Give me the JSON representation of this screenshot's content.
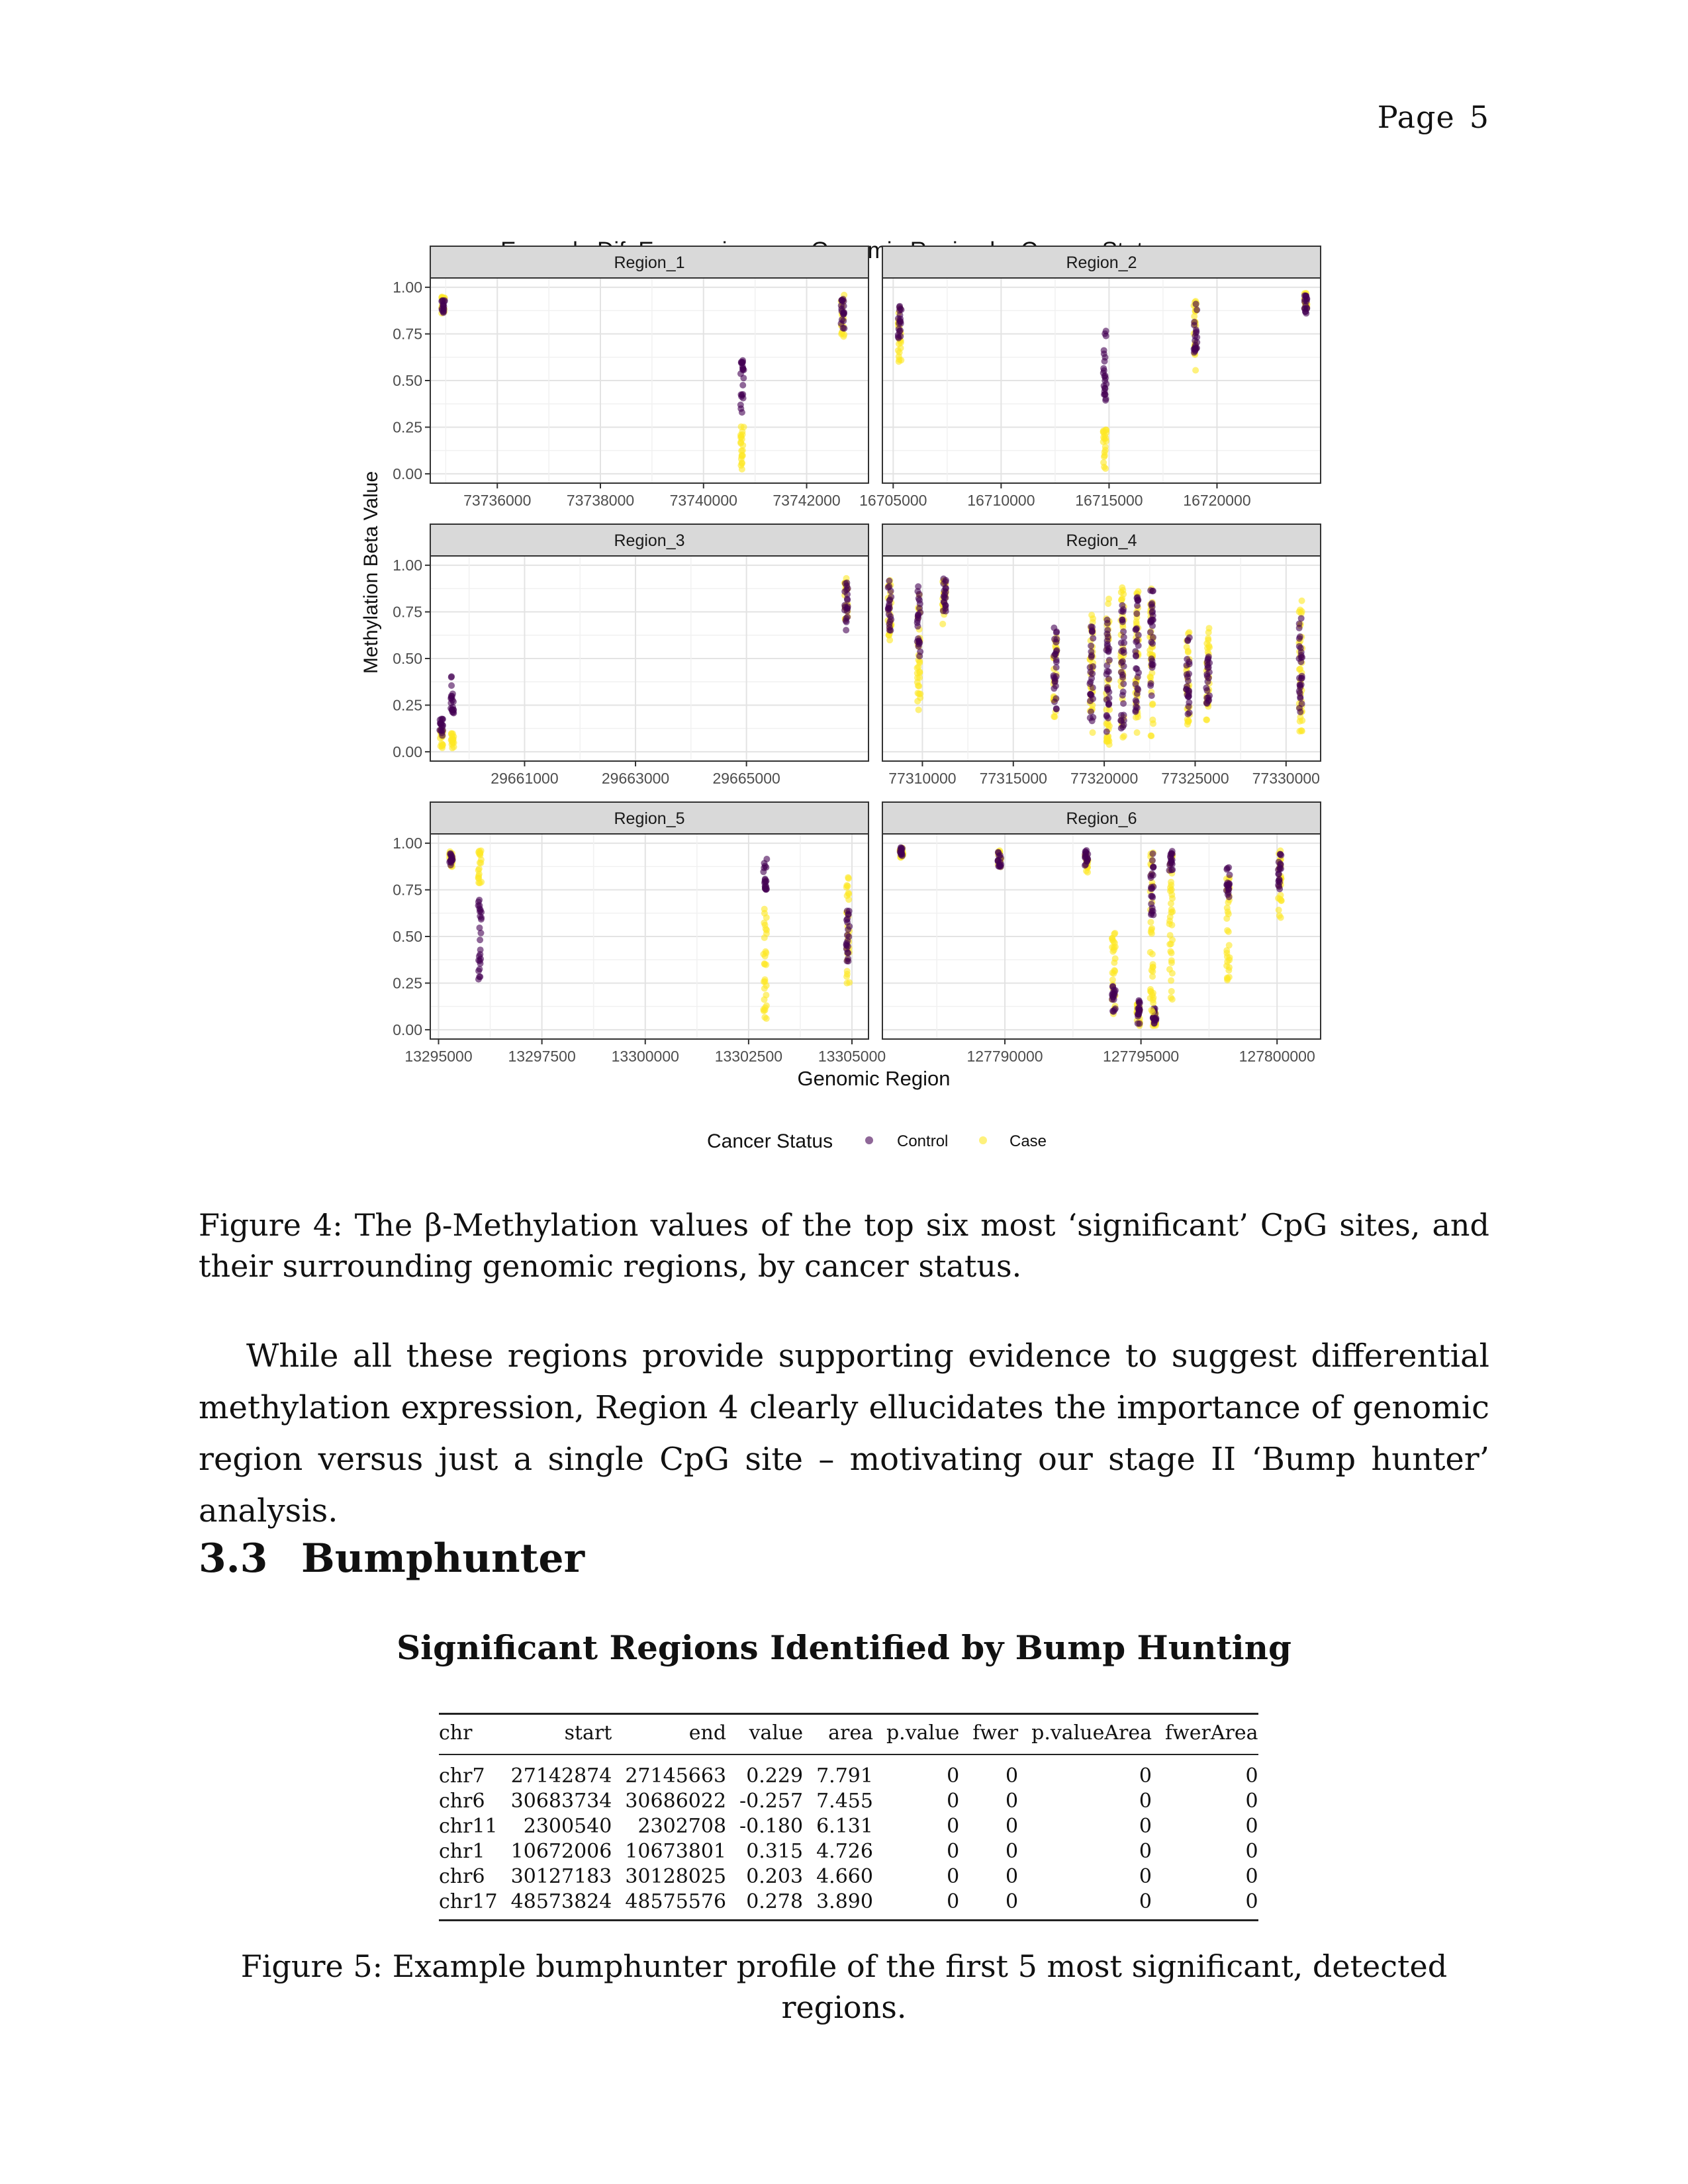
{
  "page": {
    "label": "Page",
    "number": "5"
  },
  "chart_data": {
    "type": "scatter",
    "title": "Example Dif. Expression over Genomic Region by Cancer Status",
    "xlabel": "Genomic Region",
    "ylabel": "Methylation Beta Value",
    "legend": {
      "title": "Cancer Status",
      "placement": "bottom",
      "entries": [
        {
          "name": "Control",
          "color": "#440154"
        },
        {
          "name": "Case",
          "color": "#FDE725"
        }
      ]
    },
    "yticks": [
      "0.00",
      "0.25",
      "0.50",
      "0.75",
      "1.00"
    ],
    "ylim": [
      0,
      1
    ],
    "grid": true,
    "panels": [
      {
        "name": "Region_1",
        "xlim": [
          73734700,
          73743200
        ],
        "xticks": [
          {
            "v": 73736000,
            "label": "73736000"
          },
          {
            "v": 73738000,
            "label": "73738000"
          },
          {
            "v": 73740000,
            "label": "73740000"
          },
          {
            "v": 73742000,
            "label": "73742000"
          }
        ],
        "points": [
          {
            "x": 73734950,
            "case": [
              0.86,
              0.95
            ],
            "control": [
              0.86,
              0.93
            ]
          },
          {
            "x": 73740750,
            "case": [
              0.02,
              0.28
            ],
            "control": [
              0.32,
              0.63
            ]
          },
          {
            "x": 73742700,
            "case": [
              0.73,
              0.96
            ],
            "control": [
              0.77,
              0.95
            ]
          }
        ]
      },
      {
        "name": "Region_2",
        "xlim": [
          16704500,
          16724800
        ],
        "xticks": [
          {
            "v": 16705000,
            "label": "16705000"
          },
          {
            "v": 16710000,
            "label": "16710000"
          },
          {
            "v": 16715000,
            "label": "16715000"
          },
          {
            "v": 16720000,
            "label": "16720000"
          }
        ],
        "points": [
          {
            "x": 16705300,
            "case": [
              0.6,
              0.9
            ],
            "control": [
              0.72,
              0.93
            ]
          },
          {
            "x": 16714800,
            "case": [
              0.02,
              0.25
            ],
            "control": [
              0.38,
              0.77
            ]
          },
          {
            "x": 16719000,
            "case": [
              0.55,
              0.93
            ],
            "control": [
              0.65,
              0.92
            ]
          },
          {
            "x": 16724100,
            "case": [
              0.88,
              0.97
            ],
            "control": [
              0.86,
              0.96
            ]
          }
        ]
      },
      {
        "name": "Region_3",
        "xlim": [
          29659300,
          29667200
        ],
        "xticks": [
          {
            "v": 29661000,
            "label": "29661000"
          },
          {
            "v": 29663000,
            "label": "29663000"
          },
          {
            "v": 29665000,
            "label": "29665000"
          }
        ],
        "points": [
          {
            "x": 29659500,
            "case": [
              0.02,
              0.12
            ],
            "control": [
              0.08,
              0.18
            ]
          },
          {
            "x": 29659700,
            "case": [
              0.02,
              0.1
            ],
            "control": [
              0.18,
              0.41
            ]
          },
          {
            "x": 29666800,
            "case": [
              0.7,
              0.95
            ],
            "control": [
              0.65,
              0.93
            ]
          }
        ]
      },
      {
        "name": "Region_4",
        "xlim": [
          77307800,
          77331900
        ],
        "xticks": [
          {
            "v": 77310000,
            "label": "77310000"
          },
          {
            "v": 77315000,
            "label": "77315000"
          },
          {
            "v": 77320000,
            "label": "77320000"
          },
          {
            "v": 77325000,
            "label": "77325000"
          },
          {
            "v": 77330000,
            "label": "77330000"
          }
        ],
        "points": [
          {
            "x": 77308200,
            "case": [
              0.55,
              0.93
            ],
            "control": [
              0.65,
              0.92
            ]
          },
          {
            "x": 77309800,
            "case": [
              0.2,
              0.85
            ],
            "control": [
              0.5,
              0.9
            ]
          },
          {
            "x": 77311200,
            "case": [
              0.65,
              0.93
            ],
            "control": [
              0.75,
              0.93
            ]
          },
          {
            "x": 77317300,
            "case": [
              0.18,
              0.62
            ],
            "control": [
              0.22,
              0.69
            ]
          },
          {
            "x": 77319300,
            "case": [
              0.05,
              0.75
            ],
            "control": [
              0.15,
              0.7
            ]
          },
          {
            "x": 77320200,
            "case": [
              0.02,
              0.82
            ],
            "control": [
              0.1,
              0.75
            ]
          },
          {
            "x": 77321000,
            "case": [
              0.05,
              0.88
            ],
            "control": [
              0.12,
              0.8
            ]
          },
          {
            "x": 77321800,
            "case": [
              0.1,
              0.9
            ],
            "control": [
              0.2,
              0.85
            ]
          },
          {
            "x": 77322600,
            "case": [
              0.08,
              0.89
            ],
            "control": [
              0.3,
              0.88
            ]
          },
          {
            "x": 77324600,
            "case": [
              0.12,
              0.65
            ],
            "control": [
              0.2,
              0.62
            ]
          },
          {
            "x": 77325700,
            "case": [
              0.15,
              0.68
            ],
            "control": [
              0.25,
              0.55
            ]
          },
          {
            "x": 77330800,
            "case": [
              0.1,
              0.86
            ],
            "control": [
              0.2,
              0.73
            ]
          }
        ]
      },
      {
        "name": "Region_5",
        "xlim": [
          13294800,
          13305400
        ],
        "xticks": [
          {
            "v": 13295000,
            "label": "13295000"
          },
          {
            "v": 13297500,
            "label": "13297500"
          },
          {
            "v": 13300000,
            "label": "13300000"
          },
          {
            "v": 13302500,
            "label": "13302500"
          },
          {
            "v": 13305000,
            "label": "13305000"
          }
        ],
        "points": [
          {
            "x": 13295300,
            "case": [
              0.86,
              0.96
            ],
            "control": [
              0.88,
              0.95
            ]
          },
          {
            "x": 13296000,
            "case": [
              0.78,
              0.97
            ],
            "control": [
              0.25,
              0.7
            ]
          },
          {
            "x": 13302900,
            "case": [
              0.04,
              0.65
            ],
            "control": [
              0.7,
              0.93
            ]
          },
          {
            "x": 13304900,
            "case": [
              0.25,
              0.82
            ],
            "control": [
              0.35,
              0.65
            ]
          }
        ]
      },
      {
        "name": "Region_6",
        "xlim": [
          127785500,
          127801600
        ],
        "xticks": [
          {
            "v": 127790000,
            "label": "127790000"
          },
          {
            "v": 127795000,
            "label": "127795000"
          },
          {
            "v": 127800000,
            "label": "127800000"
          }
        ],
        "points": [
          {
            "x": 127786200,
            "case": [
              0.92,
              0.98
            ],
            "control": [
              0.93,
              0.98
            ]
          },
          {
            "x": 127789800,
            "case": [
              0.85,
              0.96
            ],
            "control": [
              0.87,
              0.96
            ]
          },
          {
            "x": 127793000,
            "case": [
              0.83,
              0.97
            ],
            "control": [
              0.88,
              0.97
            ]
          },
          {
            "x": 127794000,
            "case": [
              0.05,
              0.52
            ],
            "control": [
              0.08,
              0.25
            ]
          },
          {
            "x": 127794900,
            "case": [
              0.02,
              0.14
            ],
            "control": [
              0.02,
              0.16
            ]
          },
          {
            "x": 127795500,
            "case": [
              0.02,
              0.1
            ],
            "control": [
              0.03,
              0.13
            ]
          },
          {
            "x": 127795400,
            "case": [
              0.05,
              0.95
            ],
            "control": [
              0.6,
              0.95
            ]
          },
          {
            "x": 127796100,
            "case": [
              0.15,
              0.96
            ],
            "control": [
              0.85,
              0.96
            ]
          },
          {
            "x": 127798200,
            "case": [
              0.25,
              0.87
            ],
            "control": [
              0.7,
              0.87
            ]
          },
          {
            "x": 127800100,
            "case": [
              0.6,
              0.96
            ],
            "control": [
              0.75,
              0.96
            ]
          }
        ]
      }
    ]
  },
  "figure4_caption": "Figure 4: The β-Methylation values of the top six most ‘significant’ CpG sites, and their surrounding genomic regions, by cancer status.",
  "paragraph": "While all these regions provide supporting evidence to suggest differential methylation expression, Region 4 clearly ellucidates the importance of genomic region versus just a single CpG site – motivating our stage II ‘Bump hunter’ analysis.",
  "section": {
    "number": "3.3",
    "title": "Bumphunter"
  },
  "table": {
    "title": "Significant Regions Identified by Bump Hunting",
    "columns": [
      "chr",
      "start",
      "end",
      "value",
      "area",
      "p.value",
      "fwer",
      "p.valueArea",
      "fwerArea"
    ],
    "rows": [
      [
        "chr7",
        "27142874",
        "27145663",
        "0.229",
        "7.791",
        "0",
        "0",
        "0",
        "0"
      ],
      [
        "chr6",
        "30683734",
        "30686022",
        "-0.257",
        "7.455",
        "0",
        "0",
        "0",
        "0"
      ],
      [
        "chr11",
        "2300540",
        "2302708",
        "-0.180",
        "6.131",
        "0",
        "0",
        "0",
        "0"
      ],
      [
        "chr1",
        "10672006",
        "10673801",
        "0.315",
        "4.726",
        "0",
        "0",
        "0",
        "0"
      ],
      [
        "chr6",
        "30127183",
        "30128025",
        "0.203",
        "4.660",
        "0",
        "0",
        "0",
        "0"
      ],
      [
        "chr17",
        "48573824",
        "48575576",
        "0.278",
        "3.890",
        "0",
        "0",
        "0",
        "0"
      ]
    ]
  },
  "figure5_caption": "Figure 5: Example bumphunter profile of the first 5 most significant, detected regions."
}
